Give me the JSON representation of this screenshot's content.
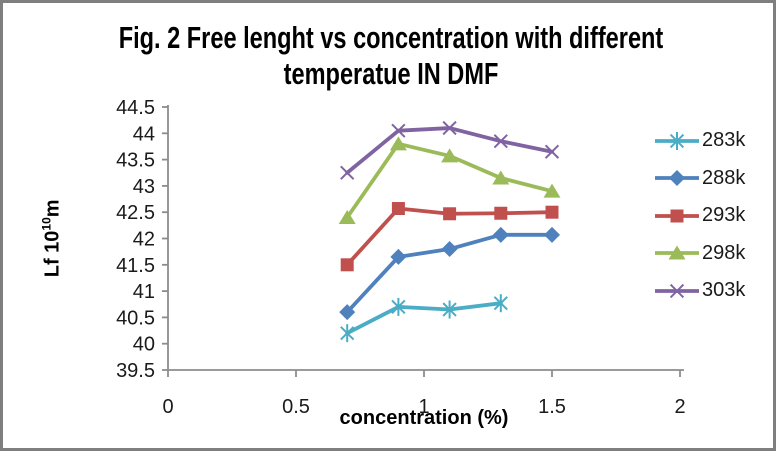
{
  "frame": {
    "border_color": "#7f7f7f",
    "background": "#ffffff"
  },
  "chart_data": {
    "type": "line",
    "title": "Fig. 2 Free lenght vs concentration with different temperatue IN DMF",
    "xlabel": "concentration (%)",
    "ylabel": "Lf 10^10 m",
    "ylabel_parts": {
      "base": "Lf 10",
      "sup": "10",
      "unit": "m"
    },
    "xlim": [
      0,
      2
    ],
    "ylim": [
      39.5,
      44.5
    ],
    "x_ticks": [
      0,
      0.5,
      1,
      1.5,
      2
    ],
    "y_ticks": [
      39.5,
      40,
      40.5,
      41,
      41.5,
      42,
      42.5,
      43,
      43.5,
      44,
      44.5
    ],
    "grid": false,
    "legend_position": "right",
    "axis_color": "#8c8c8c",
    "tick_label_color": "#1a1a1a",
    "series": [
      {
        "name": "283k",
        "color": "#4BACC6",
        "marker": "asterisk",
        "x": [
          0.7,
          0.9,
          1.1,
          1.3
        ],
        "y": [
          40.2,
          40.7,
          40.65,
          40.77
        ]
      },
      {
        "name": "288k",
        "color": "#4F81BD",
        "marker": "diamond",
        "x": [
          0.7,
          0.9,
          1.1,
          1.3,
          1.5
        ],
        "y": [
          40.6,
          41.65,
          41.8,
          42.07,
          42.07
        ]
      },
      {
        "name": "293k",
        "color": "#C0504D",
        "marker": "square",
        "x": [
          0.7,
          0.9,
          1.1,
          1.3,
          1.5
        ],
        "y": [
          41.5,
          42.57,
          42.47,
          42.48,
          42.5
        ]
      },
      {
        "name": "298k",
        "color": "#9BBB59",
        "marker": "triangle",
        "x": [
          0.7,
          0.9,
          1.1,
          1.3,
          1.5
        ],
        "y": [
          42.4,
          43.8,
          43.57,
          43.15,
          42.9
        ]
      },
      {
        "name": "303k",
        "color": "#8064A2",
        "marker": "x",
        "x": [
          0.7,
          0.9,
          1.1,
          1.3,
          1.5
        ],
        "y": [
          43.25,
          44.05,
          44.1,
          43.85,
          43.65
        ]
      }
    ]
  }
}
